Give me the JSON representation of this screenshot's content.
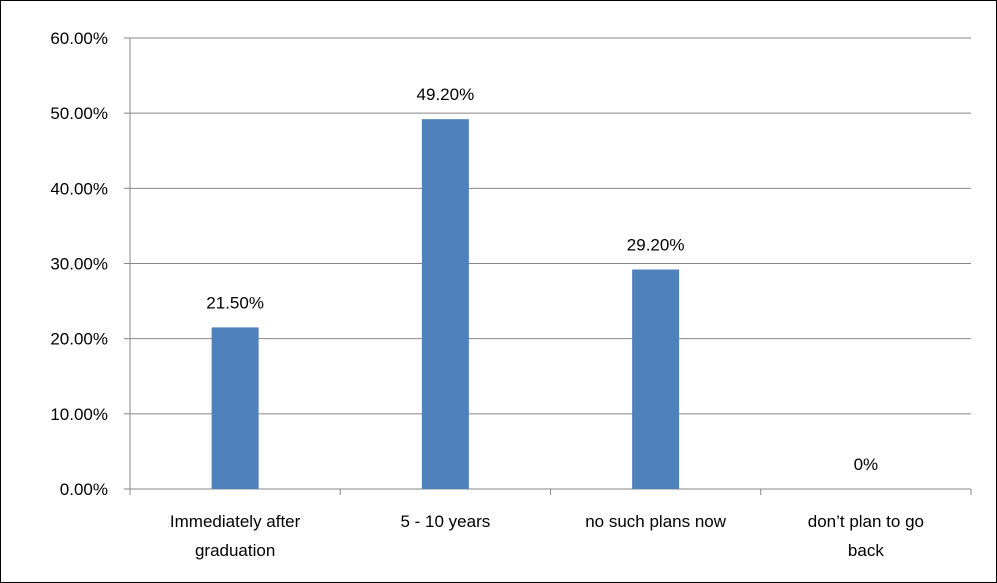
{
  "chart_data": {
    "type": "bar",
    "title": "",
    "xlabel": "",
    "ylabel": "",
    "categories": [
      [
        "Immediately after",
        "graduation"
      ],
      [
        "5 - 10 years"
      ],
      [
        "no such plans now"
      ],
      [
        "don’t plan to go",
        "back"
      ]
    ],
    "values": [
      21.5,
      49.2,
      29.2,
      0
    ],
    "data_labels": [
      "21.50%",
      "49.20%",
      "29.20%",
      "0%"
    ],
    "ylim": [
      0,
      60
    ],
    "yticks": [
      0,
      10,
      20,
      30,
      40,
      50,
      60
    ],
    "ytick_labels": [
      "0.00%",
      "10.00%",
      "20.00%",
      "30.00%",
      "40.00%",
      "50.00%",
      "60.00%"
    ],
    "grid": true,
    "legend": "none",
    "bar_color": "#4F81BD",
    "grid_color": "#868686"
  }
}
